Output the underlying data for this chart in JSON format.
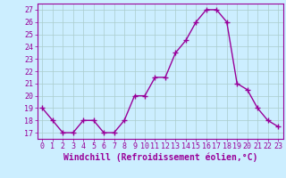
{
  "x": [
    0,
    1,
    2,
    3,
    4,
    5,
    6,
    7,
    8,
    9,
    10,
    11,
    12,
    13,
    14,
    15,
    16,
    17,
    18,
    19,
    20,
    21,
    22,
    23
  ],
  "y": [
    19,
    18,
    17,
    17,
    18,
    18,
    17,
    17,
    18,
    20,
    20,
    21.5,
    21.5,
    23.5,
    24.5,
    26,
    27,
    27,
    26,
    21,
    20.5,
    19,
    18,
    17.5
  ],
  "line_color": "#990099",
  "marker": "+",
  "marker_size": 4,
  "marker_lw": 1.0,
  "bg_color": "#cceeff",
  "grid_color": "#aacccc",
  "xlabel": "Windchill (Refroidissement éolien,°C)",
  "xlabel_color": "#990099",
  "ylim": [
    16.5,
    27.5
  ],
  "yticks": [
    17,
    18,
    19,
    20,
    21,
    22,
    23,
    24,
    25,
    26,
    27
  ],
  "xticks": [
    0,
    1,
    2,
    3,
    4,
    5,
    6,
    7,
    8,
    9,
    10,
    11,
    12,
    13,
    14,
    15,
    16,
    17,
    18,
    19,
    20,
    21,
    22,
    23
  ],
  "tick_label_size": 6,
  "xlabel_size": 7,
  "linewidth": 1.0
}
